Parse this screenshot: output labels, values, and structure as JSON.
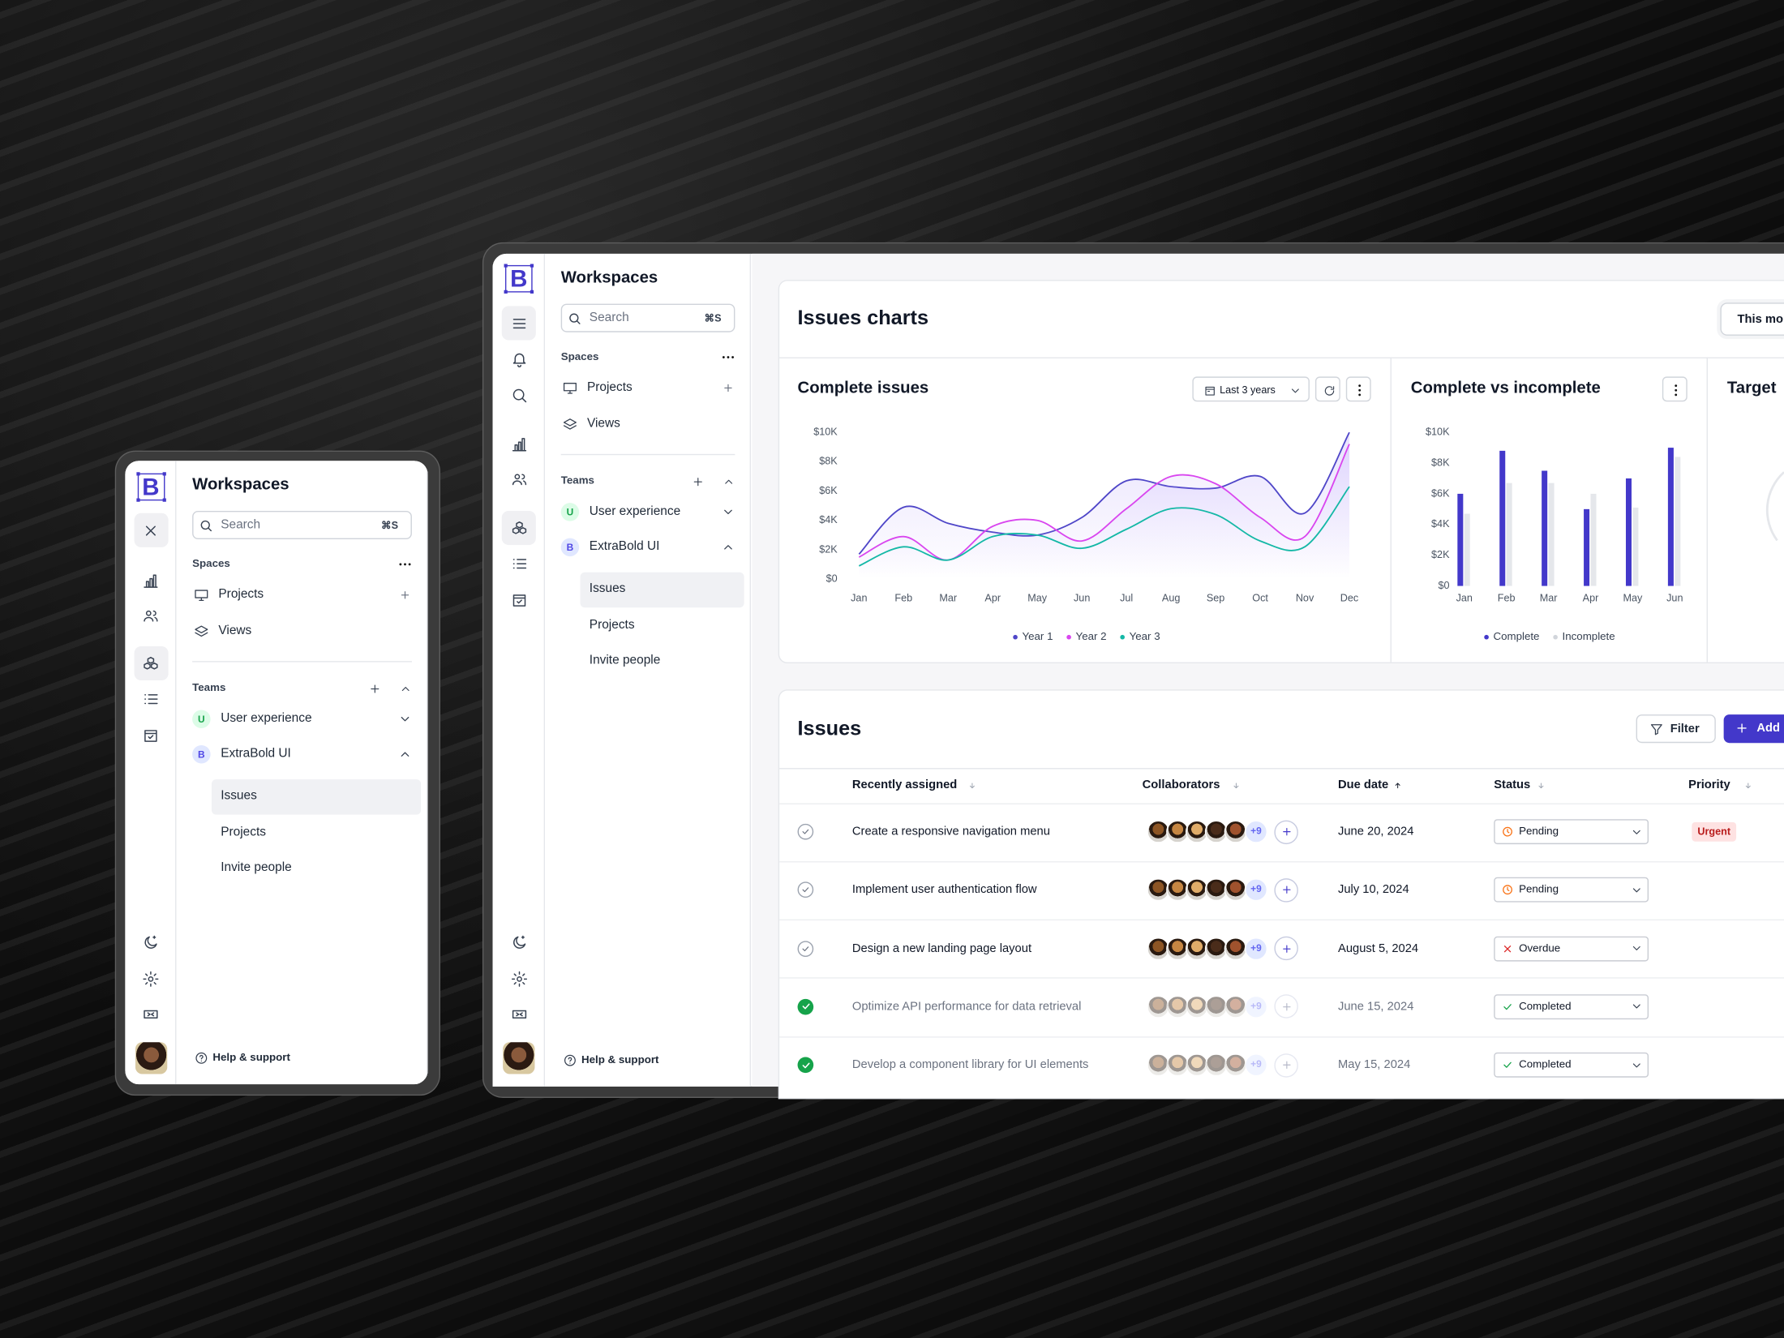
{
  "sidebar": {
    "logo": "B",
    "title": "Workspaces",
    "search": "Search",
    "shortcut": "⌘S",
    "spaces_label": "Spaces",
    "spaces": [
      "Projects",
      "Views"
    ],
    "teams_label": "Teams",
    "teams": [
      {
        "badge": "U",
        "name": "User experience",
        "expanded": false
      },
      {
        "badge": "B",
        "name": "ExtraBold UI",
        "expanded": true,
        "items": [
          "Issues",
          "Projects",
          "Invite people"
        ],
        "active": 0
      }
    ],
    "help": "Help & support"
  },
  "charts_section": {
    "title": "Issues charts",
    "range_button": "This month",
    "third_title": "Target"
  },
  "chart_data": [
    {
      "type": "line",
      "title": "Complete issues",
      "range": "Last 3 years",
      "categories": [
        "Jan",
        "Feb",
        "Mar",
        "Apr",
        "May",
        "Jun",
        "Jul",
        "Aug",
        "Sep",
        "Oct",
        "Nov",
        "Dec"
      ],
      "series": [
        {
          "name": "Year 1",
          "color": "#4f46c8",
          "values": [
            1700,
            4900,
            3800,
            3200,
            3000,
            4200,
            6700,
            6300,
            6200,
            7000,
            4500,
            10000
          ]
        },
        {
          "name": "Year 2",
          "color": "#d946ef",
          "values": [
            1500,
            2900,
            1300,
            3600,
            4000,
            2600,
            4800,
            7000,
            6500,
            4200,
            2900,
            9200
          ]
        },
        {
          "name": "Year 3",
          "color": "#14b8a6",
          "values": [
            900,
            2200,
            1300,
            2900,
            3000,
            2100,
            3400,
            4800,
            4400,
            2600,
            2200,
            6300
          ]
        }
      ],
      "ylim": [
        0,
        10000
      ],
      "yticks": [
        {
          "value": 0,
          "label": "$0"
        },
        {
          "value": 2000,
          "label": "$2K"
        },
        {
          "value": 4000,
          "label": "$4K"
        },
        {
          "value": 6000,
          "label": "$6K"
        },
        {
          "value": 8000,
          "label": "$8K"
        },
        {
          "value": 10000,
          "label": "$10K"
        }
      ],
      "grid": false
    },
    {
      "type": "bar",
      "title": "Complete vs incomplete",
      "categories": [
        "Jan",
        "Feb",
        "Mar",
        "Apr",
        "May",
        "Jun"
      ],
      "series": [
        {
          "name": "Complete",
          "color": "#4338ca",
          "values": [
            6000,
            8800,
            7500,
            5000,
            7000,
            9000
          ]
        },
        {
          "name": "Incomplete",
          "color": "#e5e7eb",
          "values": [
            4700,
            6700,
            6700,
            6000,
            5100,
            8400
          ]
        }
      ],
      "ylim": [
        0,
        10000
      ],
      "yticks": [
        {
          "value": 0,
          "label": "$0"
        },
        {
          "value": 2000,
          "label": "$2K"
        },
        {
          "value": 4000,
          "label": "$4K"
        },
        {
          "value": 6000,
          "label": "$6K"
        },
        {
          "value": 8000,
          "label": "$8K"
        },
        {
          "value": 10000,
          "label": "$10K"
        }
      ],
      "grid": false
    }
  ],
  "issues": {
    "title": "Issues",
    "filter": "Filter",
    "add": "Add issue",
    "columns": [
      "Recently assigned",
      "Collaborators",
      "Due date",
      "Status",
      "Priority"
    ],
    "rows": [
      {
        "done": false,
        "task": "Create a responsive navigation menu",
        "more": "+9",
        "due": "June 20, 2024",
        "status": "Pending",
        "status_icon": "clock",
        "priority": "Urgent"
      },
      {
        "done": false,
        "task": "Implement user authentication flow",
        "more": "+9",
        "due": "July 10, 2024",
        "status": "Pending",
        "status_icon": "clock"
      },
      {
        "done": false,
        "task": "Design a new landing page layout",
        "more": "+9",
        "due": "August 5, 2024",
        "status": "Overdue",
        "status_icon": "x"
      },
      {
        "done": true,
        "task": "Optimize API performance for data retrieval",
        "more": "+9",
        "due": "June 15, 2024",
        "status": "Completed",
        "status_icon": "check"
      },
      {
        "done": true,
        "task": "Develop a component library for UI elements",
        "more": "+9",
        "due": "May 15, 2024",
        "status": "Completed",
        "status_icon": "check"
      }
    ]
  }
}
